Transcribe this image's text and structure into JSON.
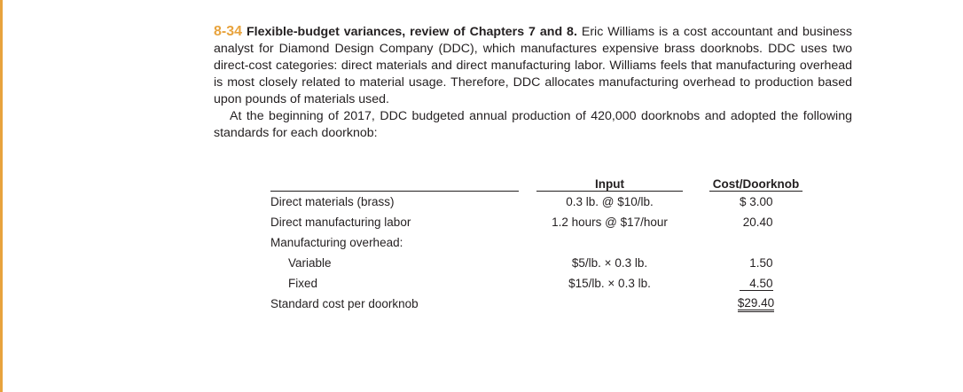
{
  "problem": {
    "number": "8-34",
    "title": "Flexible-budget variances, review of Chapters 7 and 8.",
    "paragraph1": "Eric Williams is a cost accountant and business analyst for Diamond Design Company (DDC), which manufactures expensive brass doorknobs. DDC uses two direct-cost categories: direct materials and direct manufacturing labor. Williams feels that manufacturing overhead is most closely related to material usage. Therefore, DDC allocates manufacturing overhead to production based upon pounds of materials used.",
    "paragraph2": "At the beginning of 2017, DDC budgeted annual production of 420,000 doorknobs and adopted the following standards for each doorknob:"
  },
  "table": {
    "header_input": "Input",
    "header_cost": "Cost/Doorknob",
    "rows": [
      {
        "label": "Direct materials (brass)",
        "input": "0.3 lb. @ $10/lb.",
        "cost": "$ 3.00"
      },
      {
        "label": "Direct manufacturing labor",
        "input": "1.2 hours @ $17/hour",
        "cost": "20.40"
      },
      {
        "label": "Manufacturing overhead:",
        "input": "",
        "cost": ""
      },
      {
        "label": "Variable",
        "input": "$5/lb. × 0.3 lb.",
        "cost": "1.50"
      },
      {
        "label": "Fixed",
        "input": "$15/lb. × 0.3 lb.",
        "cost": "4.50"
      },
      {
        "label": "Standard cost per doorknob",
        "input": "",
        "cost": "$29.40"
      }
    ]
  },
  "colors": {
    "accent": "#e8a33d",
    "text": "#231f20"
  }
}
